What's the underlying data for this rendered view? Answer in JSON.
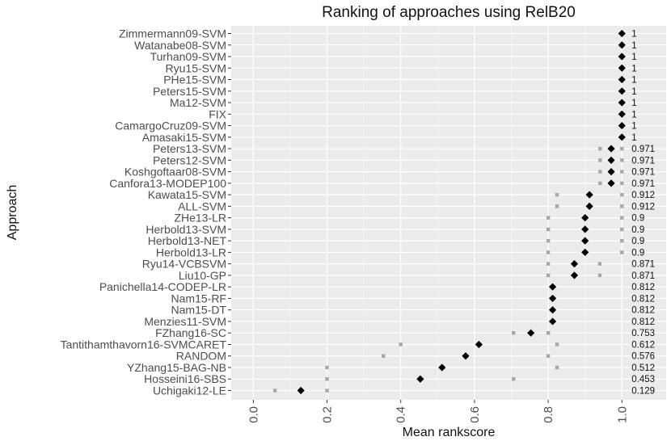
{
  "chart_data": {
    "type": "scatter",
    "title": "Ranking of approaches using RelB20",
    "xlabel": "Mean rankscore",
    "ylabel": "Approach",
    "xlim": [
      -0.06,
      1.12
    ],
    "x_ticks": [
      "0.0",
      "0.2",
      "0.4",
      "0.6",
      "0.8",
      "1.0"
    ],
    "grid": true,
    "series": [
      {
        "marker": "diamond",
        "color": "#000000",
        "points": [
          {
            "approach": "Zimmermann09-SVM",
            "mean": 1,
            "label": "1",
            "ci": [
              1,
              1
            ]
          },
          {
            "approach": "Watanabe08-SVM",
            "mean": 1,
            "label": "1",
            "ci": [
              1,
              1
            ]
          },
          {
            "approach": "Turhan09-SVM",
            "mean": 1,
            "label": "1",
            "ci": [
              1,
              1
            ]
          },
          {
            "approach": "Ryu15-SVM",
            "mean": 1,
            "label": "1",
            "ci": [
              1,
              1
            ]
          },
          {
            "approach": "PHe15-SVM",
            "mean": 1,
            "label": "1",
            "ci": [
              1,
              1
            ]
          },
          {
            "approach": "Peters15-SVM",
            "mean": 1,
            "label": "1",
            "ci": [
              1,
              1
            ]
          },
          {
            "approach": "Ma12-SVM",
            "mean": 1,
            "label": "1",
            "ci": [
              1,
              1
            ]
          },
          {
            "approach": "FIX",
            "mean": 1,
            "label": "1",
            "ci": [
              1,
              1
            ]
          },
          {
            "approach": "CamargoCruz09-SVM",
            "mean": 1,
            "label": "1",
            "ci": [
              1,
              1
            ]
          },
          {
            "approach": "Amasaki15-SVM",
            "mean": 1,
            "label": "1",
            "ci": [
              1,
              1
            ]
          },
          {
            "approach": "Peters13-SVM",
            "mean": 0.971,
            "label": "0.971",
            "ci": [
              0.941,
              1
            ]
          },
          {
            "approach": "Peters12-SVM",
            "mean": 0.971,
            "label": "0.971",
            "ci": [
              0.941,
              1
            ]
          },
          {
            "approach": "Koshgoftaar08-SVM",
            "mean": 0.971,
            "label": "0.971",
            "ci": [
              0.941,
              1
            ]
          },
          {
            "approach": "Canfora13-MODEP100",
            "mean": 0.971,
            "label": "0.971",
            "ci": [
              0.941,
              1
            ]
          },
          {
            "approach": "Kawata15-SVM",
            "mean": 0.912,
            "label": "0.912",
            "ci": [
              0.824,
              1
            ]
          },
          {
            "approach": "ALL-SVM",
            "mean": 0.912,
            "label": "0.912",
            "ci": [
              0.824,
              1
            ]
          },
          {
            "approach": "ZHe13-LR",
            "mean": 0.9,
            "label": "0.9",
            "ci": [
              0.8,
              1
            ]
          },
          {
            "approach": "Herbold13-SVM",
            "mean": 0.9,
            "label": "0.9",
            "ci": [
              0.8,
              1
            ]
          },
          {
            "approach": "Herbold13-NET",
            "mean": 0.9,
            "label": "0.9",
            "ci": [
              0.8,
              1
            ]
          },
          {
            "approach": "Herbold13-LR",
            "mean": 0.9,
            "label": "0.9",
            "ci": [
              0.8,
              1
            ]
          },
          {
            "approach": "Ryu14-VCBSVM",
            "mean": 0.871,
            "label": "0.871",
            "ci": [
              0.8,
              0.94
            ]
          },
          {
            "approach": "Liu10-GP",
            "mean": 0.871,
            "label": "0.871",
            "ci": [
              0.8,
              0.94
            ]
          },
          {
            "approach": "Panichella14-CODEP-LR",
            "mean": 0.812,
            "label": "0.812",
            "ci": [
              0.812,
              0.812
            ]
          },
          {
            "approach": "Nam15-RF",
            "mean": 0.812,
            "label": "0.812",
            "ci": [
              0.812,
              0.812
            ]
          },
          {
            "approach": "Nam15-DT",
            "mean": 0.812,
            "label": "0.812",
            "ci": [
              0.812,
              0.812
            ]
          },
          {
            "approach": "Menzies11-SVM",
            "mean": 0.812,
            "label": "0.812",
            "ci": [
              0.812,
              0.812
            ]
          },
          {
            "approach": "FZhang16-SC",
            "mean": 0.753,
            "label": "0.753",
            "ci": [
              0.706,
              0.8
            ]
          },
          {
            "approach": "Tantithamthavorn16-SVMCARET",
            "mean": 0.612,
            "label": "0.612",
            "ci": [
              0.4,
              0.824
            ]
          },
          {
            "approach": "RANDOM",
            "mean": 0.576,
            "label": "0.576",
            "ci": [
              0.353,
              0.8
            ]
          },
          {
            "approach": "YZhang15-BAG-NB",
            "mean": 0.512,
            "label": "0.512",
            "ci": [
              0.2,
              0.824
            ]
          },
          {
            "approach": "Hosseini16-SBS",
            "mean": 0.453,
            "label": "0.453",
            "ci": [
              0.2,
              0.706
            ]
          },
          {
            "approach": "Uchigaki12-LE",
            "mean": 0.129,
            "label": "0.129",
            "ci": [
              0.059,
              0.2
            ]
          }
        ]
      }
    ],
    "colors": {
      "panel": "#ebebeb",
      "grid_major": "#ffffff",
      "interval_point": "#a6a6a6",
      "mean_point": "#000000",
      "tick_text": "#4d4d4d"
    }
  }
}
